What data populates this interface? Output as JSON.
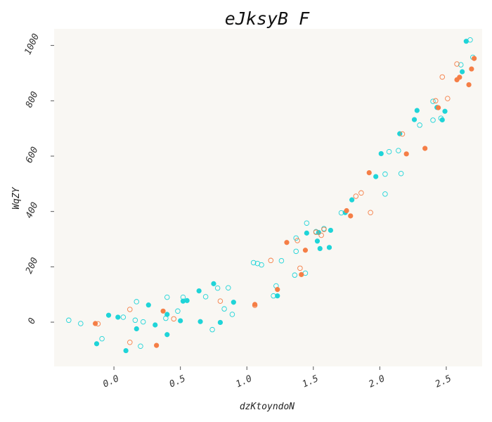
{
  "chart_data": {
    "type": "scatter",
    "title": "eJksyB F",
    "xlabel": "dzKtoyndoN",
    "ylabel": "WqZY",
    "xlim": [
      -0.45,
      2.77
    ],
    "ylim": [
      -160,
      1060
    ],
    "xticks": [
      "0.0",
      "0.5",
      "1.0",
      "1.5",
      "2.0",
      "2.5"
    ],
    "xtick_values": [
      0.0,
      0.5,
      1.0,
      1.5,
      2.0,
      2.5
    ],
    "yticks": [
      "0",
      "200",
      "400",
      "600",
      "800",
      "1000"
    ],
    "ytick_values": [
      0,
      200,
      400,
      600,
      800,
      1000
    ],
    "grid": false,
    "legend": "none",
    "background": "#f9f7f3",
    "series": [
      {
        "color": "#1fd4d8",
        "style": "filled",
        "points": [
          [
            -0.13,
            -78
          ],
          [
            -0.04,
            25
          ],
          [
            0.03,
            18
          ],
          [
            0.09,
            -103
          ],
          [
            0.17,
            -24
          ],
          [
            0.26,
            62
          ],
          [
            0.31,
            -10
          ],
          [
            0.4,
            28
          ],
          [
            0.4,
            -45
          ],
          [
            0.5,
            5
          ],
          [
            0.52,
            76
          ],
          [
            0.55,
            78
          ],
          [
            0.64,
            113
          ],
          [
            0.65,
            2
          ],
          [
            0.75,
            139
          ],
          [
            0.8,
            -1
          ],
          [
            0.9,
            72
          ],
          [
            1.23,
            95
          ],
          [
            1.45,
            322
          ],
          [
            1.53,
            293
          ],
          [
            1.55,
            266
          ],
          [
            1.54,
            324
          ],
          [
            1.62,
            270
          ],
          [
            1.63,
            332
          ],
          [
            1.74,
            396
          ],
          [
            1.79,
            442
          ],
          [
            1.97,
            526
          ],
          [
            2.01,
            609
          ],
          [
            2.15,
            681
          ],
          [
            2.26,
            732
          ],
          [
            2.28,
            765
          ],
          [
            2.43,
            776
          ],
          [
            2.47,
            731
          ],
          [
            2.49,
            762
          ],
          [
            2.62,
            905
          ],
          [
            2.65,
            1015
          ]
        ]
      },
      {
        "color": "#1fd4d8",
        "style": "hollow",
        "points": [
          [
            -0.34,
            7
          ],
          [
            -0.25,
            -5
          ],
          [
            -0.09,
            -60
          ],
          [
            0.07,
            18
          ],
          [
            0.16,
            7
          ],
          [
            0.17,
            74
          ],
          [
            0.2,
            -87
          ],
          [
            0.22,
            1
          ],
          [
            0.39,
            14
          ],
          [
            0.4,
            90
          ],
          [
            0.48,
            40
          ],
          [
            0.52,
            90
          ],
          [
            0.69,
            92
          ],
          [
            0.74,
            -27
          ],
          [
            0.78,
            123
          ],
          [
            0.83,
            48
          ],
          [
            0.86,
            124
          ],
          [
            0.89,
            28
          ],
          [
            1.05,
            215
          ],
          [
            1.08,
            212
          ],
          [
            1.11,
            207
          ],
          [
            1.2,
            95
          ],
          [
            1.22,
            131
          ],
          [
            1.26,
            222
          ],
          [
            1.36,
            170
          ],
          [
            1.37,
            304
          ],
          [
            1.37,
            256
          ],
          [
            1.44,
            177
          ],
          [
            1.45,
            358
          ],
          [
            1.52,
            327
          ],
          [
            1.58,
            338
          ],
          [
            1.71,
            395
          ],
          [
            2.04,
            535
          ],
          [
            2.04,
            463
          ],
          [
            2.07,
            616
          ],
          [
            2.14,
            620
          ],
          [
            2.16,
            537
          ],
          [
            2.3,
            712
          ],
          [
            2.4,
            730
          ],
          [
            2.4,
            798
          ],
          [
            2.46,
            737
          ],
          [
            2.61,
            930
          ],
          [
            2.68,
            1020
          ],
          [
            2.7,
            957
          ]
        ]
      },
      {
        "color": "#f57e46",
        "style": "filled",
        "points": [
          [
            -0.14,
            -5
          ],
          [
            0.32,
            -84
          ],
          [
            0.37,
            40
          ],
          [
            1.06,
            64
          ],
          [
            1.23,
            118
          ],
          [
            1.3,
            288
          ],
          [
            1.41,
            172
          ],
          [
            1.44,
            260
          ],
          [
            1.75,
            403
          ],
          [
            1.78,
            384
          ],
          [
            1.92,
            540
          ],
          [
            2.2,
            608
          ],
          [
            2.34,
            628
          ],
          [
            2.44,
            775
          ],
          [
            2.58,
            876
          ],
          [
            2.6,
            885
          ],
          [
            2.67,
            858
          ],
          [
            2.69,
            915
          ],
          [
            2.71,
            953
          ]
        ]
      },
      {
        "color": "#f57e46",
        "style": "hollow",
        "points": [
          [
            -0.12,
            -6
          ],
          [
            0.12,
            46
          ],
          [
            0.12,
            -73
          ],
          [
            0.45,
            12
          ],
          [
            0.8,
            76
          ],
          [
            1.06,
            61
          ],
          [
            1.18,
            223
          ],
          [
            1.38,
            295
          ],
          [
            1.4,
            195
          ],
          [
            1.52,
            325
          ],
          [
            1.56,
            314
          ],
          [
            1.58,
            335
          ],
          [
            1.82,
            455
          ],
          [
            1.86,
            467
          ],
          [
            1.93,
            396
          ],
          [
            2.17,
            680
          ],
          [
            2.42,
            800
          ],
          [
            2.47,
            886
          ],
          [
            2.51,
            808
          ],
          [
            2.58,
            933
          ]
        ]
      }
    ]
  }
}
